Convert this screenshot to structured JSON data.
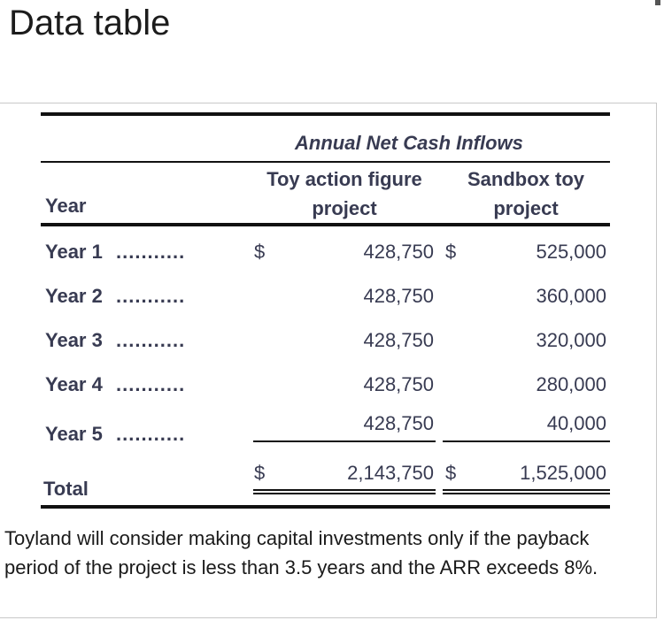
{
  "title": "Data table",
  "table": {
    "group_header": "Annual Net Cash Inflows",
    "col1_header": "Toy action figure project",
    "col1_line1": "Toy action figure",
    "col1_line2": "project",
    "col2_header": "Sandbox toy project",
    "col2_line1": "Sandbox toy",
    "col2_line2": "project",
    "year_header": "Year",
    "currency_symbol": "$",
    "leader_dots": "...........",
    "rows": [
      {
        "label": "Year 1",
        "toy_action_figure": "428,750",
        "sandbox_toy": "525,000"
      },
      {
        "label": "Year 2",
        "toy_action_figure": "428,750",
        "sandbox_toy": "360,000"
      },
      {
        "label": "Year 3",
        "toy_action_figure": "428,750",
        "sandbox_toy": "320,000"
      },
      {
        "label": "Year 4",
        "toy_action_figure": "428,750",
        "sandbox_toy": "280,000"
      },
      {
        "label": "Year 5",
        "toy_action_figure": "428,750",
        "sandbox_toy": "40,000"
      }
    ],
    "total": {
      "label": "Total",
      "toy_action_figure": "2,143,750",
      "sandbox_toy": "1,525,000"
    }
  },
  "note": "Toyland will consider making capital investments only if the payback period of the project is less than 3.5 years and the ARR exceeds 8%."
}
